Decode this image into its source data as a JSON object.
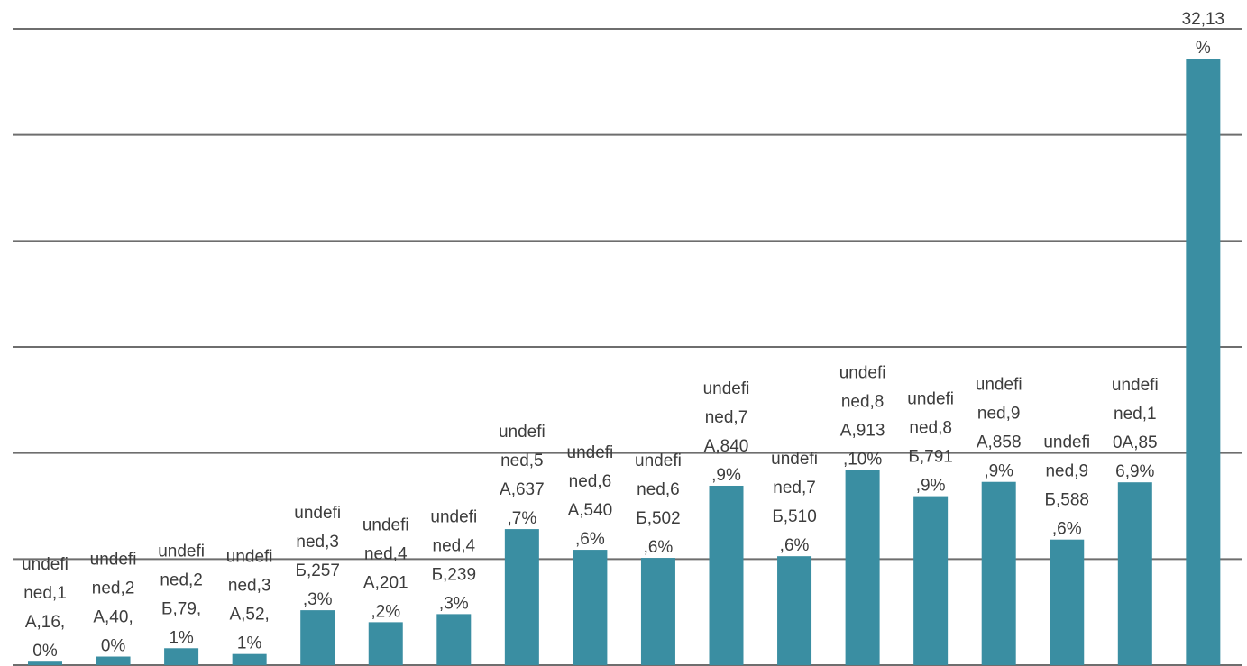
{
  "chart_data": {
    "type": "bar",
    "grid": true,
    "legend": "none",
    "colors": {
      "bar": "#3a8ea2",
      "grid": "#6e6e6e",
      "label": "#3c3c3c"
    },
    "ylim": [
      0,
      2980
    ],
    "values": [
      16,
      40,
      79,
      52,
      257,
      201,
      239,
      637,
      540,
      502,
      840,
      510,
      913,
      791,
      858,
      588,
      856,
      2840
    ],
    "labels": [
      [
        "undefi",
        "ned,1",
        "А,16,",
        "0%"
      ],
      [
        "undefi",
        "ned,2",
        "А,40,",
        "0%"
      ],
      [
        "undefi",
        "ned,2",
        "Б,79,",
        "1%"
      ],
      [
        "undefi",
        "ned,3",
        "А,52,",
        "1%"
      ],
      [
        "undefi",
        "ned,3",
        "Б,257",
        ",3%"
      ],
      [
        "undefi",
        "ned,4",
        "А,201",
        ",2%"
      ],
      [
        "undefi",
        "ned,4",
        "Б,239",
        ",3%"
      ],
      [
        "undefi",
        "ned,5",
        "А,637",
        ",7%"
      ],
      [
        "undefi",
        "ned,6",
        "А,540",
        ",6%"
      ],
      [
        "undefi",
        "ned,6",
        "Б,502",
        ",6%"
      ],
      [
        "undefi",
        "ned,7",
        "А,840",
        ",9%"
      ],
      [
        "undefi",
        "ned,7",
        "Б,510",
        ",6%"
      ],
      [
        "undefi",
        "ned,8",
        "А,913",
        ",10%"
      ],
      [
        "undefi",
        "ned,8",
        "Б,791",
        ",9%"
      ],
      [
        "undefi",
        "ned,9",
        "А,858",
        ",9%"
      ],
      [
        "undefi",
        "ned,9",
        "Б,588",
        ",6%"
      ],
      [
        "undefi",
        "ned,1",
        "0А,85",
        "6,9%"
      ],
      [
        "32,13",
        "%"
      ]
    ]
  }
}
